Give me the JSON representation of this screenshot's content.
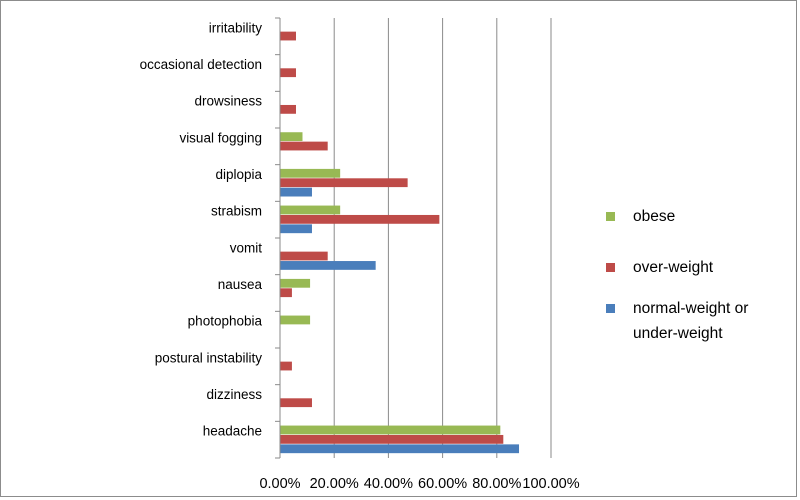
{
  "chart_data": {
    "type": "bar",
    "orientation": "horizontal",
    "categories": [
      "headache",
      "dizziness",
      "postural instability",
      "photophobia",
      "nausea",
      "vomit",
      "strabism",
      "diplopia",
      "visual fogging",
      "drowsiness",
      "occasional detection",
      "irritability"
    ],
    "series": [
      {
        "name": "normal-weight or under-weight",
        "color": "#4a7ebb",
        "values": [
          0.882,
          0,
          0,
          0,
          0,
          0.353,
          0.118,
          0.118,
          0,
          0,
          0,
          0
        ]
      },
      {
        "name": "over-weight",
        "color": "#be4b48",
        "values": [
          0.824,
          0.118,
          0.044,
          0,
          0.044,
          0.176,
          0.588,
          0.471,
          0.176,
          0.059,
          0.059,
          0.059
        ]
      },
      {
        "name": "obese",
        "color": "#98b954",
        "values": [
          0.813,
          0,
          0,
          0.111,
          0.111,
          0,
          0.222,
          0.222,
          0.083,
          0,
          0,
          0
        ]
      }
    ],
    "xticks": [
      "0.00%",
      "20.00%",
      "40.00%",
      "60.00%",
      "80.00%",
      "100.00%"
    ],
    "xlim": [
      0,
      1
    ],
    "grid": true,
    "legend_position": "right",
    "legend_order": [
      "obese",
      "over-weight",
      "normal-weight or under-weight"
    ],
    "legend_lines": {
      "obese": [
        "obese"
      ],
      "over-weight": [
        "over-weight"
      ],
      "normal-weight or under-weight": [
        "normal-weight or",
        "under-weight"
      ]
    }
  }
}
